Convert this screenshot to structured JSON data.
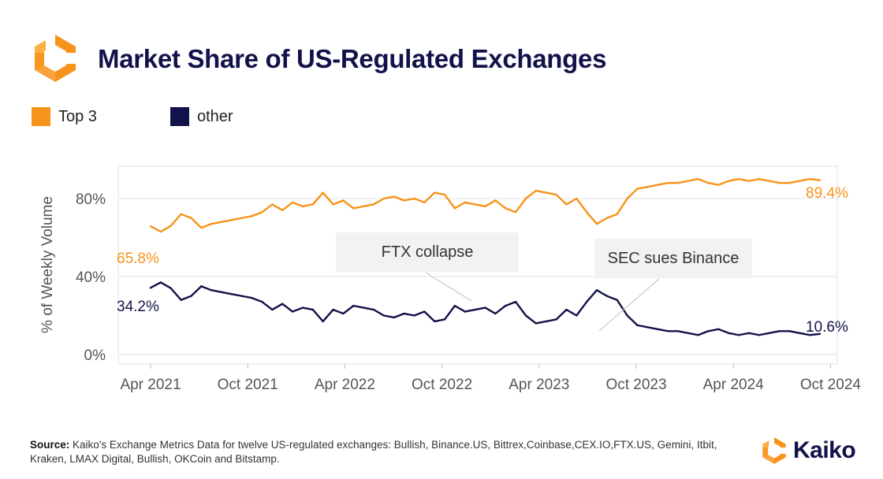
{
  "header": {
    "title": "Market Share of US-Regulated Exchanges",
    "logo_icon": "kaiko-hexagon-logo-icon"
  },
  "colors": {
    "top3": "#f7931a",
    "other": "#12124a",
    "grid": "#e3e3e3",
    "axis_text": "#555555"
  },
  "chart_data": {
    "type": "line",
    "title": "Market Share of US-Regulated Exchanges",
    "xlabel": "",
    "ylabel": "% of Weekly Volume",
    "ylim": [
      0,
      100
    ],
    "yticks": [
      0,
      40,
      80
    ],
    "ytick_labels": [
      "0%",
      "40%",
      "80%"
    ],
    "xlim": [
      2021.25,
      2024.83
    ],
    "xticks": [
      2021.25,
      2021.75,
      2022.25,
      2022.75,
      2023.25,
      2023.75,
      2024.25,
      2024.75
    ],
    "xtick_labels": [
      "Apr 2021",
      "Oct 2021",
      "Apr 2022",
      "Oct 2022",
      "Apr 2023",
      "Oct 2023",
      "Apr 2024",
      "Oct 2024"
    ],
    "legend_position": "top-left",
    "series": [
      {
        "name": "Top 3",
        "values": [
          65.8,
          63,
          66,
          72,
          70,
          65,
          67,
          68,
          69,
          70,
          71,
          73,
          77,
          74,
          78,
          76,
          77,
          83,
          77,
          79,
          75,
          76,
          77,
          80,
          81,
          79,
          80,
          78,
          83,
          82,
          75,
          78,
          77,
          76,
          79,
          75,
          73,
          80,
          84,
          83,
          82,
          77,
          80,
          73,
          67,
          70,
          72,
          80,
          85,
          86,
          87,
          88,
          88,
          89,
          90,
          88,
          87,
          89,
          90,
          89,
          90,
          89,
          88,
          88,
          89,
          90,
          89.4
        ],
        "end_label": "89.4%",
        "start_label": "65.8%"
      },
      {
        "name": "other",
        "values": [
          34.2,
          37,
          34,
          28,
          30,
          35,
          33,
          32,
          31,
          30,
          29,
          27,
          23,
          26,
          22,
          24,
          23,
          17,
          23,
          21,
          25,
          24,
          23,
          20,
          19,
          21,
          20,
          22,
          17,
          18,
          25,
          22,
          23,
          24,
          21,
          25,
          27,
          20,
          16,
          17,
          18,
          23,
          20,
          27,
          33,
          30,
          28,
          20,
          15,
          14,
          13,
          12,
          12,
          11,
          10,
          12,
          13,
          11,
          10,
          11,
          10,
          11,
          12,
          12,
          11,
          10,
          10.6
        ],
        "end_label": "10.6%",
        "start_label": "34.2%"
      }
    ],
    "annotations": [
      {
        "text": "FTX collapse",
        "target_x": 2022.86,
        "target_y": 31
      },
      {
        "text": "SEC sues Binance",
        "target_x": 2023.44,
        "target_y": 13
      }
    ]
  },
  "footer": {
    "source_label": "Source:",
    "source_text": "Kaiko's Exchange Metrics Data for twelve US-regulated exchanges: Bullish, Binance.US, Bittrex,Coinbase,CEX.IO,FTX.US, Gemini, Itbit, Kraken, LMAX Digital, Bullish, OKCoin and Bitstamp.",
    "brand_name": "Kaiko",
    "brand_icon": "kaiko-hexagon-logo-icon"
  }
}
